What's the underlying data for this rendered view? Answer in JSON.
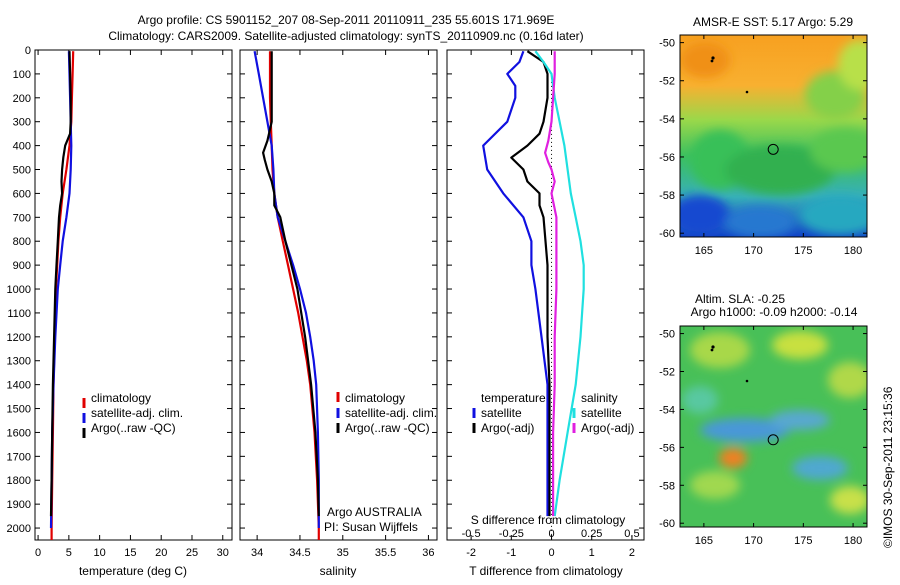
{
  "header": {
    "line1": "Argo profile: CS 5901152_207 08-Sep-2011 20110911_235 55.601S 171.969E",
    "line2": "Climatology: CARS2009. Satellite-adjusted climatology: synTS_20110909.nc (0.16d later)"
  },
  "colors": {
    "climatology": "#e00000",
    "satellite": "#1010e0",
    "argo": "#000000",
    "sal_sat": "#20e0e0",
    "sal_argo": "#e020e0"
  },
  "chart_data": [
    {
      "type": "line",
      "xlabel": "temperature (deg C)",
      "xlim": [
        -0.5,
        31.5
      ],
      "xticks": [
        0,
        5,
        10,
        15,
        20,
        25,
        30
      ],
      "ylim": [
        0,
        2050
      ],
      "yticks": [
        0,
        100,
        200,
        300,
        400,
        500,
        600,
        700,
        800,
        900,
        1000,
        1100,
        1200,
        1300,
        1400,
        1500,
        1600,
        1700,
        1800,
        1900,
        2000
      ],
      "legend": [
        "climatology",
        "satellite-adj. clim.",
        "Argo(..raw -QC)"
      ],
      "series": [
        {
          "name": "climatology",
          "depth": [
            5,
            100,
            200,
            300,
            400,
            500,
            600,
            700,
            800,
            900,
            1000,
            1200,
            1400,
            1600,
            1800,
            2000,
            2050
          ],
          "values": [
            5.7,
            5.6,
            5.5,
            5.4,
            5.1,
            4.6,
            4.0,
            3.6,
            3.3,
            3.1,
            2.9,
            2.7,
            2.5,
            2.4,
            2.3,
            2.2,
            2.2
          ]
        },
        {
          "name": "satellite-adj. clim.",
          "depth": [
            5,
            100,
            200,
            300,
            400,
            500,
            600,
            700,
            800,
            900,
            1000,
            1200,
            1400,
            1600,
            1800,
            2000
          ],
          "values": [
            5.0,
            5.1,
            5.2,
            5.3,
            5.4,
            5.3,
            5.1,
            4.6,
            4.0,
            3.6,
            3.2,
            2.8,
            2.5,
            2.3,
            2.2,
            2.1
          ]
        },
        {
          "name": "Argo(..raw -QC)",
          "depth": [
            5,
            100,
            200,
            300,
            350,
            400,
            450,
            500,
            550,
            600,
            650,
            700,
            800,
            900,
            1000,
            1200,
            1400,
            1600,
            1800,
            1950
          ],
          "values": [
            5.1,
            5.2,
            5.3,
            5.3,
            5.2,
            4.4,
            4.1,
            3.9,
            3.8,
            3.9,
            3.6,
            3.4,
            3.2,
            3.0,
            2.8,
            2.6,
            2.4,
            2.3,
            2.2,
            2.1
          ]
        }
      ]
    },
    {
      "type": "line",
      "xlabel": "salinity",
      "xlim": [
        33.8,
        36.1
      ],
      "xticks": [
        34,
        34.5,
        35,
        35.5,
        36
      ],
      "legend": [
        "climatology",
        "satellite-adj. clim.",
        "Argo(..raw -QC)"
      ],
      "annotation": [
        "Argo AUSTRALIA",
        "PI: Susan Wijffels"
      ],
      "series": [
        {
          "name": "climatology",
          "depth": [
            5,
            100,
            200,
            300,
            400,
            500,
            600,
            700,
            800,
            900,
            1000,
            1100,
            1200,
            1300,
            1400,
            1600,
            1800,
            2000,
            2050
          ],
          "values": [
            34.15,
            34.15,
            34.15,
            34.16,
            34.17,
            34.18,
            34.2,
            34.24,
            34.3,
            34.36,
            34.42,
            34.48,
            34.53,
            34.58,
            34.62,
            34.67,
            34.7,
            34.72,
            34.72
          ]
        },
        {
          "name": "satellite-adj. clim.",
          "depth": [
            5,
            100,
            200,
            300,
            400,
            500,
            600,
            700,
            800,
            900,
            1000,
            1100,
            1200,
            1300,
            1400,
            1600,
            1800,
            2000
          ],
          "values": [
            33.97,
            34.02,
            34.07,
            34.12,
            34.17,
            34.19,
            34.2,
            34.24,
            34.33,
            34.42,
            34.5,
            34.57,
            34.62,
            34.66,
            34.69,
            34.71,
            34.72,
            34.72
          ]
        },
        {
          "name": "Argo(..raw -QC)",
          "depth": [
            5,
            100,
            200,
            300,
            380,
            430,
            460,
            500,
            550,
            600,
            650,
            700,
            800,
            900,
            1000,
            1200,
            1400,
            1600,
            1800,
            1950
          ],
          "values": [
            34.17,
            34.17,
            34.17,
            34.17,
            34.12,
            34.07,
            34.09,
            34.12,
            34.17,
            34.2,
            34.2,
            34.27,
            34.33,
            34.4,
            34.47,
            34.56,
            34.63,
            34.68,
            34.71,
            34.72
          ]
        }
      ]
    },
    {
      "type": "line",
      "xlabel": "T difference from climatology",
      "xlabel2": "S difference from climatology",
      "xlim": [
        -2.6,
        2.3
      ],
      "xticks": [
        -2,
        -1,
        0,
        1,
        2
      ],
      "xticks_top_labels": [
        "-0.5",
        "-0.25",
        "0",
        "0.25",
        "0.5"
      ],
      "legend": {
        "temperature": [
          "temperature",
          "satellite",
          "Argo(-adj)"
        ],
        "salinity": [
          "salinity",
          "satellite",
          "Argo(-adj)"
        ]
      },
      "series": [
        {
          "name": "satellite",
          "group": "temperature",
          "depth": [
            5,
            50,
            100,
            150,
            200,
            300,
            400,
            500,
            600,
            700,
            800,
            900,
            1000,
            1200,
            1400,
            1600,
            1800,
            1950
          ],
          "values": [
            -0.7,
            -0.8,
            -1.1,
            -0.9,
            -0.9,
            -1.1,
            -1.7,
            -1.6,
            -1.2,
            -0.7,
            -0.5,
            -0.5,
            -0.4,
            -0.25,
            -0.1,
            -0.1,
            -0.1,
            -0.1
          ]
        },
        {
          "name": "Argo(-adj)",
          "group": "temperature",
          "depth": [
            5,
            50,
            100,
            200,
            300,
            350,
            400,
            450,
            500,
            550,
            600,
            650,
            700,
            800,
            900,
            1000,
            1200,
            1400,
            1600,
            1800,
            1950
          ],
          "values": [
            -0.6,
            -0.2,
            -0.1,
            -0.1,
            -0.2,
            -0.3,
            -0.6,
            -1.0,
            -0.7,
            -0.6,
            -0.3,
            -0.3,
            -0.2,
            -0.15,
            -0.1,
            -0.1,
            -0.1,
            -0.05,
            -0.05,
            -0.05,
            -0.05
          ]
        },
        {
          "name": "satellite",
          "group": "salinity",
          "depth": [
            5,
            50,
            100,
            200,
            300,
            400,
            500,
            600,
            700,
            800,
            900,
            1000,
            1200,
            1400,
            1600,
            1800,
            1950
          ],
          "values": [
            -0.1,
            -0.05,
            0.0,
            0.02,
            0.05,
            0.08,
            0.1,
            0.12,
            0.15,
            0.18,
            0.2,
            0.2,
            0.18,
            0.15,
            0.1,
            0.05,
            0.02
          ]
        },
        {
          "name": "Argo(-adj)",
          "group": "salinity",
          "depth": [
            5,
            50,
            100,
            200,
            300,
            380,
            430,
            470,
            500,
            550,
            600,
            700,
            800,
            900,
            1000,
            1200,
            1400,
            1600,
            1800,
            1950
          ],
          "values": [
            0.02,
            0.02,
            0.02,
            0.01,
            0.0,
            -0.02,
            -0.04,
            -0.02,
            0.0,
            0.02,
            0.0,
            0.03,
            0.03,
            0.03,
            0.03,
            0.02,
            0.02,
            0.01,
            0.01,
            0.01
          ]
        }
      ]
    }
  ],
  "maps": [
    {
      "title": "AMSR-E SST: 5.17 Argo: 5.29",
      "xticks": [
        165,
        170,
        175,
        180
      ],
      "yticks": [
        -50,
        -52,
        -54,
        -56,
        -58,
        -60
      ],
      "xlim": [
        162.6,
        181.4
      ],
      "ylim": [
        -60.2,
        -49.6
      ],
      "argo_position": {
        "lon": 171.969,
        "lat": -55.601
      }
    },
    {
      "title_line1": "Altim. SLA: -0.25",
      "title_line2": "Argo h1000: -0.09 h2000: -0.14",
      "xticks": [
        165,
        170,
        175,
        180
      ],
      "yticks": [
        -50,
        -52,
        -54,
        -56,
        -58,
        -60
      ],
      "xlim": [
        162.6,
        181.4
      ],
      "ylim": [
        -60.2,
        -49.6
      ],
      "argo_position": {
        "lon": 171.969,
        "lat": -55.601
      }
    }
  ],
  "footer_stamp": "©IMOS 30-Sep-2011 23:15:36"
}
